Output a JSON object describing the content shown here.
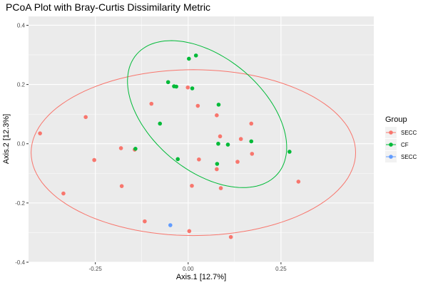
{
  "chart_data": {
    "type": "scatter",
    "title": "PCoA Plot with Bray-Curtis Dissimilarity Metric",
    "xlabel": "Axis.1   [12.7%]",
    "ylabel": "Axis.2   [12.3%]",
    "xlim": [
      -0.43,
      0.5
    ],
    "ylim": [
      -0.4,
      0.43
    ],
    "x_ticks": [
      -0.25,
      0.0,
      0.25
    ],
    "x_tick_labels": [
      "-0.25",
      "0.00",
      "0.25"
    ],
    "y_ticks": [
      -0.4,
      -0.2,
      0.0,
      0.2,
      0.4
    ],
    "y_tick_labels": [
      "-0.4",
      "-0.2",
      "0.0",
      "0.2",
      "0.4"
    ],
    "grid": true,
    "background": "#ebebeb",
    "legend": {
      "title": "Group",
      "placement": "right",
      "entries": [
        "SECC",
        "CF",
        "SECC"
      ]
    },
    "series": [
      {
        "name": "SECC",
        "color": "#F8766D",
        "points": [
          [
            -0.399,
            0.035
          ],
          [
            -0.276,
            0.09
          ],
          [
            -0.253,
            -0.055
          ],
          [
            -0.336,
            -0.168
          ],
          [
            -0.181,
            -0.015
          ],
          [
            -0.179,
            -0.143
          ],
          [
            -0.144,
            -0.02
          ],
          [
            -0.117,
            -0.262
          ],
          [
            -0.099,
            0.135
          ],
          [
            -0.001,
            0.19
          ],
          [
            0.026,
            0.128
          ],
          [
            0.01,
            -0.142
          ],
          [
            0.003,
            -0.295
          ],
          [
            0.029,
            -0.053
          ],
          [
            0.077,
            0.096
          ],
          [
            0.086,
            0.025
          ],
          [
            0.077,
            -0.086
          ],
          [
            0.088,
            -0.15
          ],
          [
            0.115,
            -0.315
          ],
          [
            0.133,
            -0.061
          ],
          [
            0.142,
            0.016
          ],
          [
            0.17,
            0.068
          ],
          [
            0.172,
            -0.034
          ],
          [
            0.297,
            -0.128
          ]
        ]
      },
      {
        "name": "CF",
        "color": "#00BA38",
        "points": [
          [
            -0.076,
            0.068
          ],
          [
            -0.054,
            0.208
          ],
          [
            -0.038,
            0.194
          ],
          [
            -0.032,
            0.193
          ],
          [
            -0.142,
            -0.017
          ],
          [
            -0.028,
            -0.052
          ],
          [
            0.002,
            0.287
          ],
          [
            0.011,
            0.187
          ],
          [
            0.021,
            0.298
          ],
          [
            0.082,
            0.132
          ],
          [
            0.081,
            0.0
          ],
          [
            0.078,
            -0.068
          ],
          [
            0.107,
            -0.003
          ],
          [
            0.17,
            0.008
          ],
          [
            0.273,
            -0.027
          ]
        ]
      },
      {
        "name": "SECC",
        "color": "#619CFF",
        "points": [
          [
            -0.048,
            -0.275
          ]
        ]
      }
    ],
    "ellipses": [
      {
        "group": "SECC",
        "color": "#F8766D",
        "center": [
          0.014,
          -0.03
        ],
        "rx": 0.437,
        "ry": 0.28,
        "angle_deg": 0
      },
      {
        "group": "CF",
        "color": "#00BA38",
        "center": [
          0.051,
          0.1
        ],
        "rx": 0.281,
        "ry": 0.169,
        "angle_deg": -54
      }
    ]
  }
}
